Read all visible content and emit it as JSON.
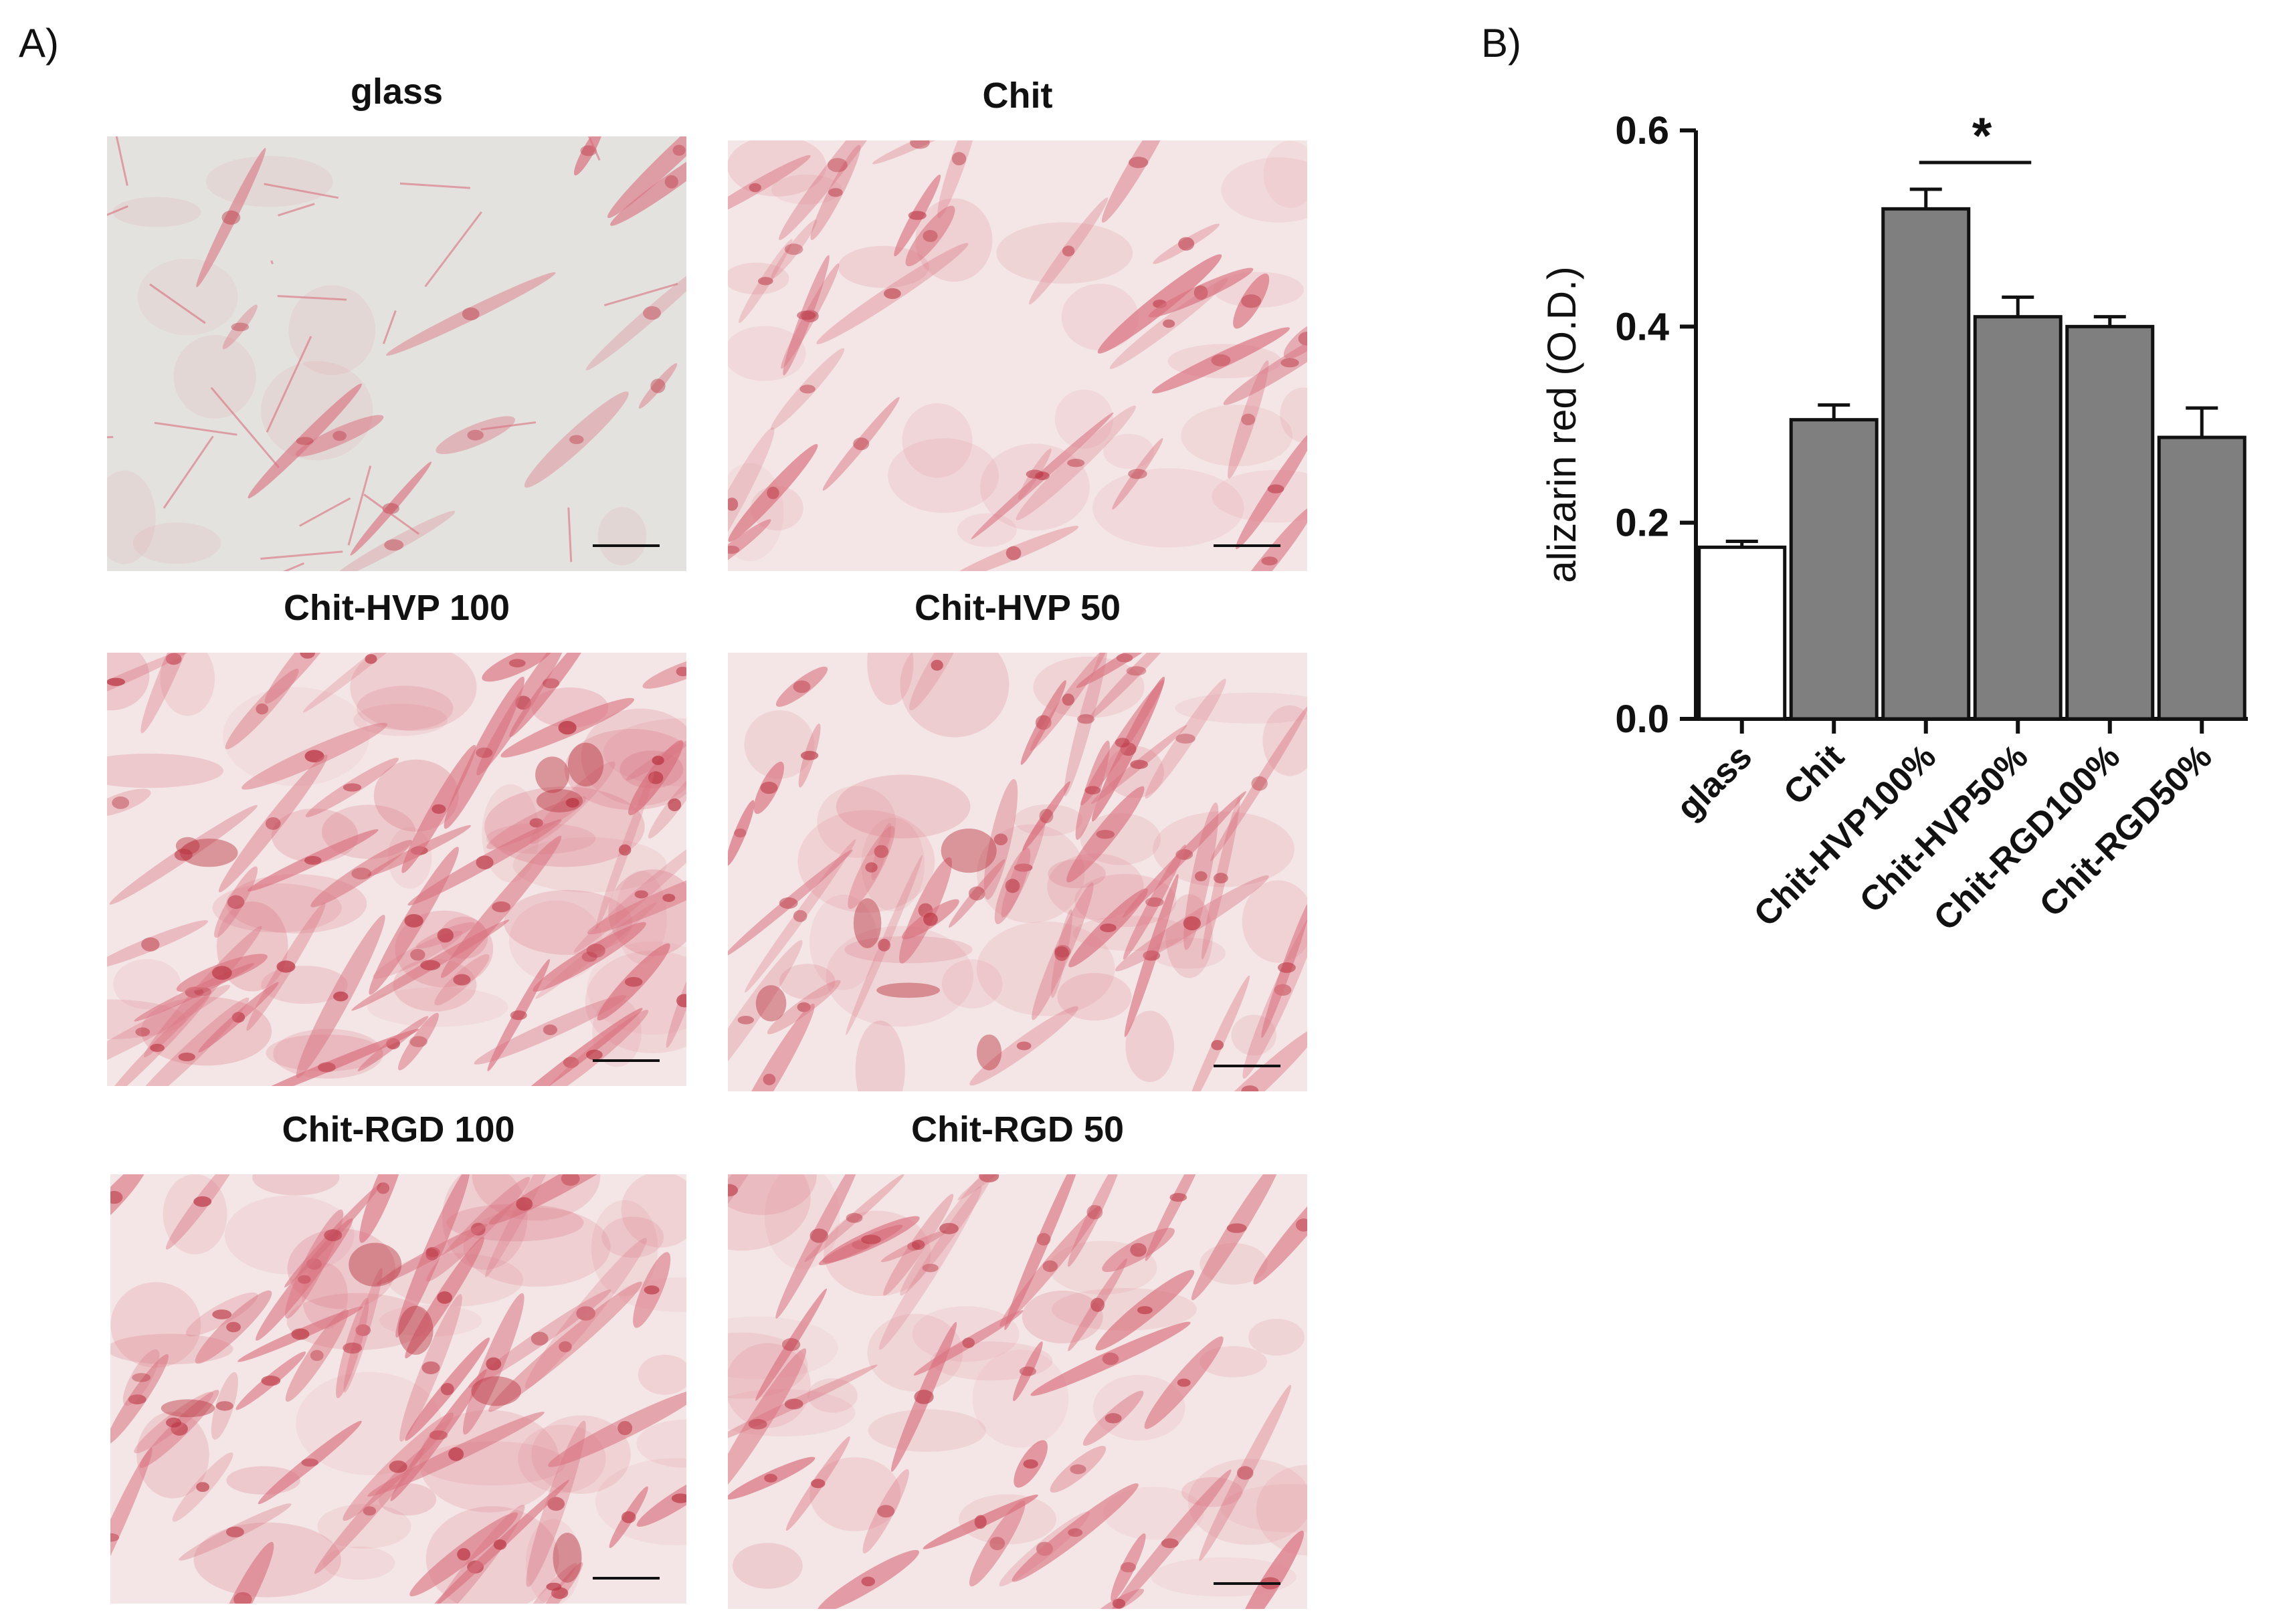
{
  "panels": {
    "a_letter": "A)",
    "b_letter": "B)"
  },
  "micrographs": [
    {
      "caption": "glass",
      "stain_density": 0.08
    },
    {
      "caption": "Chit",
      "stain_density": 0.45
    },
    {
      "caption": "Chit-HVP 100",
      "stain_density": 0.85
    },
    {
      "caption": "Chit-HVP 50",
      "stain_density": 0.65
    },
    {
      "caption": "Chit-RGD 100",
      "stain_density": 0.7
    },
    {
      "caption": "Chit-RGD 50",
      "stain_density": 0.6
    }
  ],
  "colors": {
    "stain": "#d9707e",
    "stain_dark": "#b8323f",
    "background_light": "#e4e2df",
    "background_pink": "#f4e6e6",
    "bar_fill": "#7f7f7f",
    "control_fill": "#ffffff"
  },
  "chart_data": {
    "type": "bar",
    "categories": [
      "glass",
      "Chit",
      "Chit-HVP100%",
      "Chit-HVP50%",
      "Chit-RGD100%",
      "Chit-RGD50%"
    ],
    "values": [
      0.175,
      0.305,
      0.52,
      0.41,
      0.4,
      0.287
    ],
    "errors": [
      0.006,
      0.015,
      0.02,
      0.02,
      0.01,
      0.03
    ],
    "ylabel": "alizarin red (O.D.)",
    "ylim": [
      0,
      0.6
    ],
    "yticks": [
      "0.0",
      "0.2",
      "0.4",
      "0.6"
    ],
    "significance": {
      "label": "*",
      "from": "Chit-HVP100%",
      "to": "Chit-HVP50%"
    }
  }
}
